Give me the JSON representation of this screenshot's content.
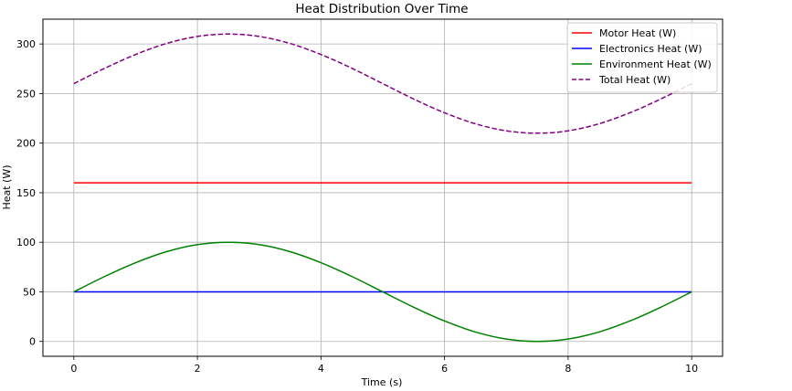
{
  "chart_data": {
    "type": "line",
    "title": "Heat Distribution Over Time",
    "xlabel": "Time (s)",
    "ylabel": "Heat (W)",
    "xlim": [
      -0.5,
      10.5
    ],
    "ylim": [
      -15,
      325
    ],
    "xticks": [
      0,
      2,
      4,
      6,
      8,
      10
    ],
    "yticks": [
      0,
      50,
      100,
      150,
      200,
      250,
      300
    ],
    "grid": true,
    "legend_position": "top-right",
    "series": [
      {
        "name": "Motor Heat (W)",
        "color": "#ff0000",
        "style": "solid",
        "x": [
          0,
          10
        ],
        "y": [
          160,
          160
        ]
      },
      {
        "name": "Electronics Heat (W)",
        "color": "#0000ff",
        "style": "solid",
        "x": [
          0,
          10
        ],
        "y": [
          50,
          50
        ]
      },
      {
        "name": "Environment Heat (W)",
        "color": "#008000",
        "style": "solid",
        "x": [
          0,
          0.5,
          1,
          1.5,
          2,
          2.5,
          3,
          3.5,
          4,
          4.5,
          5,
          5.5,
          6,
          6.5,
          7,
          7.5,
          8,
          8.5,
          9,
          9.5,
          10
        ],
        "y": [
          50,
          65.5,
          79.4,
          90.5,
          97.6,
          100,
          97.6,
          90.5,
          79.4,
          65.5,
          50,
          34.5,
          20.6,
          9.5,
          2.4,
          0,
          2.4,
          9.5,
          20.6,
          34.5,
          50
        ]
      },
      {
        "name": "Total Heat (W)",
        "color": "#800080",
        "style": "dashed",
        "x": [
          0,
          0.5,
          1,
          1.5,
          2,
          2.5,
          3,
          3.5,
          4,
          4.5,
          5,
          5.5,
          6,
          6.5,
          7,
          7.5,
          8,
          8.5,
          9,
          9.5,
          10
        ],
        "y": [
          260,
          275.5,
          289.4,
          300.5,
          307.6,
          310,
          307.6,
          300.5,
          289.4,
          275.5,
          260,
          244.5,
          230.6,
          219.5,
          212.4,
          210,
          212.4,
          219.5,
          230.6,
          244.5,
          260
        ]
      }
    ]
  }
}
